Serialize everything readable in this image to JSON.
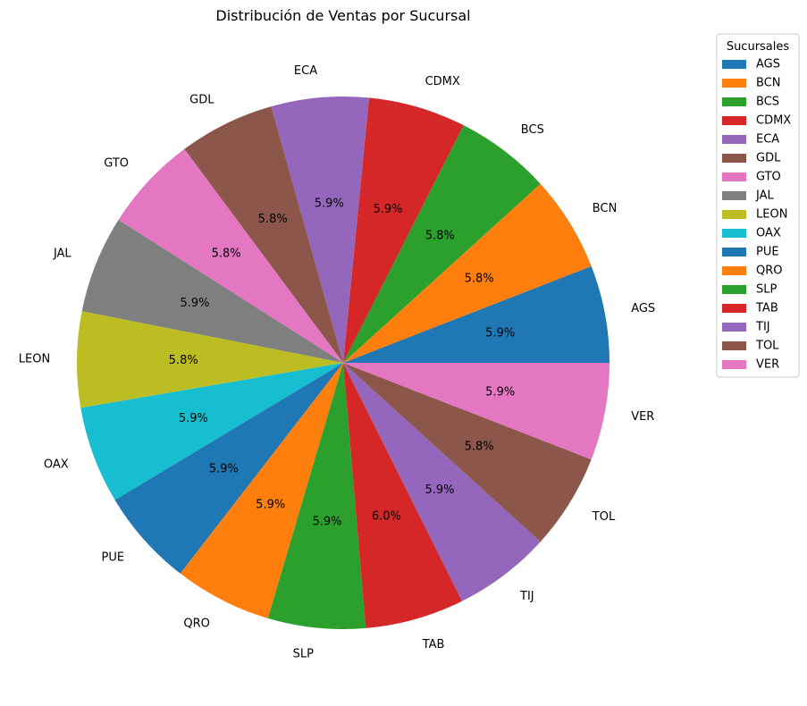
{
  "chart_data": {
    "type": "pie",
    "title": "Distribución de Ventas por Sucursal",
    "categories": [
      "AGS",
      "BCN",
      "BCS",
      "CDMX",
      "ECA",
      "GDL",
      "GTO",
      "JAL",
      "LEON",
      "OAX",
      "PUE",
      "QRO",
      "SLP",
      "TAB",
      "TIJ",
      "TOL",
      "VER"
    ],
    "values": [
      5.9,
      5.8,
      5.8,
      5.9,
      5.9,
      5.8,
      5.8,
      5.9,
      5.8,
      5.9,
      5.9,
      5.9,
      5.9,
      6.0,
      5.9,
      5.8,
      5.9
    ],
    "percent_labels": [
      "5.9%",
      "5.8%",
      "5.8%",
      "5.9%",
      "5.9%",
      "5.8%",
      "5.8%",
      "5.9%",
      "5.8%",
      "5.9%",
      "5.9%",
      "5.9%",
      "5.9%",
      "6.0%",
      "5.9%",
      "5.8%",
      "5.9%"
    ],
    "colors": [
      "#1f77b4",
      "#ff7f0e",
      "#2ca02c",
      "#d62728",
      "#9467bd",
      "#8c564b",
      "#e377c2",
      "#7f7f7f",
      "#bcbd22",
      "#17becf",
      "#1f77b4",
      "#ff7f0e",
      "#2ca02c",
      "#d62728",
      "#9467bd",
      "#8c564b",
      "#e377c2"
    ],
    "legend_title": "Sucursales",
    "legend_placement": "top-right outside",
    "start_angle": 0,
    "direction": "counterclockwise"
  }
}
